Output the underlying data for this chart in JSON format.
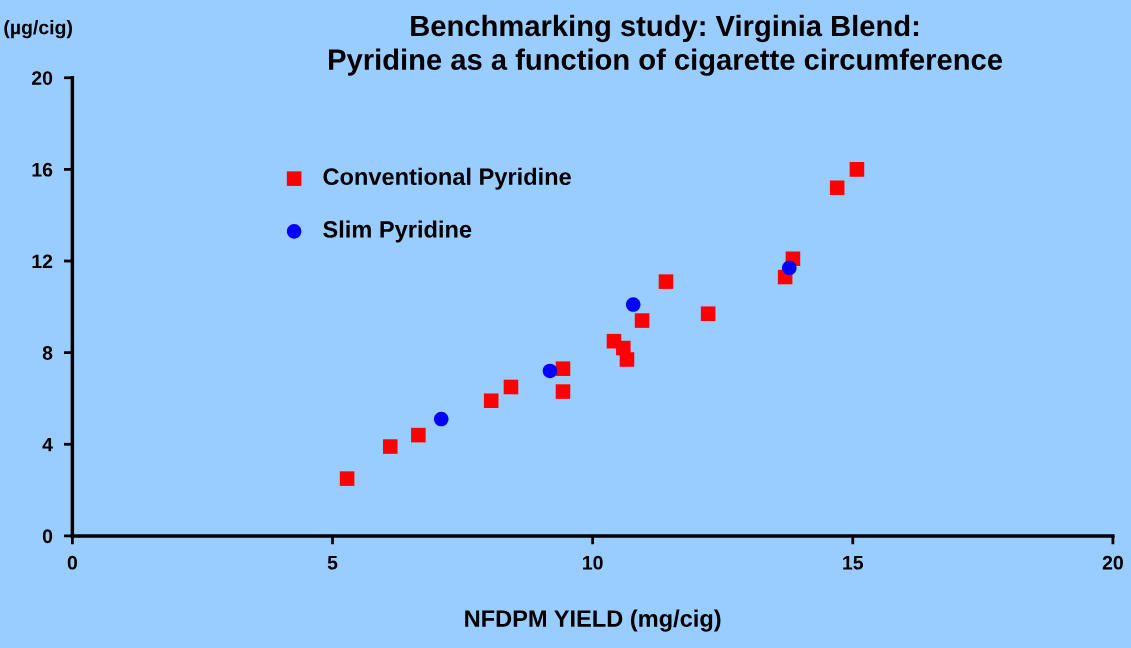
{
  "chart_data": {
    "type": "scatter",
    "title": "Benchmarking study: Virginia Blend:\nPyridine as a function of cigarette circumference",
    "xlabel": "NFDPM YIELD (mg/cig)",
    "ylabel": "(µg/cig)",
    "xlim": [
      0,
      20
    ],
    "xticks": [
      0,
      5,
      10,
      15,
      20
    ],
    "ylim": [
      0,
      20
    ],
    "yticks": [
      0,
      4,
      8,
      12,
      16,
      20
    ],
    "grid": false,
    "legend": "top left",
    "series": [
      {
        "name": "Conventional Pyridine",
        "color": "#ff0000",
        "marker": "square",
        "x": [
          5.28,
          6.11,
          6.65,
          8.05,
          8.43,
          9.43,
          9.43,
          10.41,
          10.59,
          10.66,
          10.95,
          11.41,
          12.22,
          13.7,
          13.85,
          14.7,
          15.08
        ],
        "values": [
          2.5,
          3.9,
          4.4,
          5.9,
          6.5,
          7.3,
          6.3,
          8.5,
          8.2,
          7.7,
          9.4,
          11.1,
          9.7,
          11.3,
          12.1,
          15.2,
          16.0
        ]
      },
      {
        "name": "Slim Pyridine",
        "color": "#0000ff",
        "marker": "circle",
        "x": [
          7.09,
          9.18,
          10.78,
          13.78
        ],
        "values": [
          5.1,
          7.2,
          10.1,
          11.7
        ]
      }
    ]
  }
}
